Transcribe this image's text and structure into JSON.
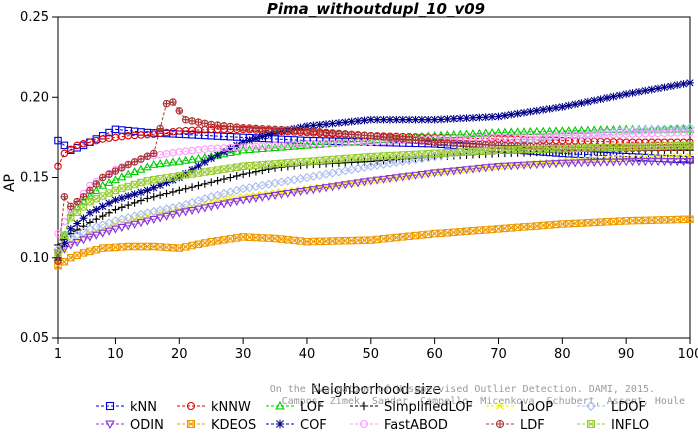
{
  "chart_data": {
    "type": "line",
    "title": "Pima_withoutdupl_10_v09",
    "xlabel": "Neighborhood size",
    "ylabel": "AP",
    "xlim": [
      1,
      100
    ],
    "ylim": [
      0.05,
      0.25
    ],
    "x_ticks": [
      1,
      10,
      20,
      30,
      40,
      50,
      60,
      70,
      80,
      90,
      100
    ],
    "y_ticks": [
      0.05,
      0.1,
      0.15,
      0.2,
      0.25
    ],
    "y_tick_labels": [
      "0.05",
      "0.10",
      "0.15",
      "0.20",
      "0.25"
    ],
    "grid": false,
    "legend_position": "bottom",
    "watermark": [
      "On the Evaluation of Unsupervised Outlier Detection. DAMI, 2015.",
      "Campos, Zimek, Sander, Campello, Micenkova, Schubert, Assent, Houle"
    ],
    "series": [
      {
        "name": "kNN",
        "color": "#0000dd",
        "marker": "square",
        "points": [
          [
            1,
            0.173
          ],
          [
            3,
            0.167
          ],
          [
            5,
            0.17
          ],
          [
            8,
            0.176
          ],
          [
            10,
            0.18
          ],
          [
            15,
            0.178
          ],
          [
            20,
            0.177
          ],
          [
            25,
            0.176
          ],
          [
            30,
            0.175
          ],
          [
            40,
            0.173
          ],
          [
            50,
            0.172
          ],
          [
            60,
            0.171
          ],
          [
            70,
            0.168
          ],
          [
            80,
            0.165
          ],
          [
            90,
            0.163
          ],
          [
            100,
            0.161
          ]
        ]
      },
      {
        "name": "kNNW",
        "color": "#dd0000",
        "marker": "circle",
        "points": [
          [
            1,
            0.157
          ],
          [
            2,
            0.165
          ],
          [
            4,
            0.17
          ],
          [
            8,
            0.174
          ],
          [
            12,
            0.176
          ],
          [
            16,
            0.177
          ],
          [
            20,
            0.179
          ],
          [
            25,
            0.18
          ],
          [
            30,
            0.18
          ],
          [
            40,
            0.178
          ],
          [
            50,
            0.176
          ],
          [
            60,
            0.175
          ],
          [
            70,
            0.174
          ],
          [
            80,
            0.173
          ],
          [
            90,
            0.172
          ],
          [
            100,
            0.172
          ]
        ]
      },
      {
        "name": "LOF",
        "color": "#00cc00",
        "marker": "triangle-up",
        "points": [
          [
            1,
            0.1
          ],
          [
            3,
            0.128
          ],
          [
            5,
            0.135
          ],
          [
            8,
            0.145
          ],
          [
            12,
            0.152
          ],
          [
            16,
            0.158
          ],
          [
            20,
            0.16
          ],
          [
            25,
            0.163
          ],
          [
            30,
            0.167
          ],
          [
            40,
            0.17
          ],
          [
            50,
            0.173
          ],
          [
            60,
            0.176
          ],
          [
            70,
            0.178
          ],
          [
            80,
            0.179
          ],
          [
            90,
            0.18
          ],
          [
            100,
            0.18
          ]
        ]
      },
      {
        "name": "SimplifiedLOF",
        "color": "#000000",
        "marker": "plus",
        "points": [
          [
            1,
            0.108
          ],
          [
            3,
            0.115
          ],
          [
            6,
            0.122
          ],
          [
            10,
            0.13
          ],
          [
            15,
            0.137
          ],
          [
            20,
            0.142
          ],
          [
            25,
            0.147
          ],
          [
            30,
            0.152
          ],
          [
            35,
            0.156
          ],
          [
            40,
            0.158
          ],
          [
            50,
            0.16
          ],
          [
            60,
            0.163
          ],
          [
            70,
            0.165
          ],
          [
            80,
            0.166
          ],
          [
            90,
            0.167
          ],
          [
            100,
            0.167
          ]
        ]
      },
      {
        "name": "LoOP",
        "color": "#eeee00",
        "marker": "x",
        "points": [
          [
            1,
            0.1
          ],
          [
            3,
            0.11
          ],
          [
            6,
            0.115
          ],
          [
            10,
            0.121
          ],
          [
            15,
            0.126
          ],
          [
            20,
            0.13
          ],
          [
            25,
            0.135
          ],
          [
            30,
            0.138
          ],
          [
            40,
            0.143
          ],
          [
            50,
            0.148
          ],
          [
            60,
            0.153
          ],
          [
            70,
            0.157
          ],
          [
            80,
            0.16
          ],
          [
            90,
            0.162
          ],
          [
            100,
            0.163
          ]
        ]
      },
      {
        "name": "LDOF",
        "color": "#aabbee",
        "marker": "diamond",
        "points": [
          [
            1,
            0.105
          ],
          [
            3,
            0.112
          ],
          [
            6,
            0.118
          ],
          [
            10,
            0.123
          ],
          [
            15,
            0.128
          ],
          [
            20,
            0.132
          ],
          [
            25,
            0.138
          ],
          [
            30,
            0.143
          ],
          [
            40,
            0.15
          ],
          [
            50,
            0.157
          ],
          [
            60,
            0.163
          ],
          [
            70,
            0.17
          ],
          [
            80,
            0.176
          ],
          [
            90,
            0.179
          ],
          [
            100,
            0.181
          ]
        ]
      },
      {
        "name": "ODIN",
        "color": "#8833dd",
        "marker": "triangle-down",
        "points": [
          [
            1,
            0.103
          ],
          [
            3,
            0.108
          ],
          [
            6,
            0.113
          ],
          [
            10,
            0.118
          ],
          [
            15,
            0.123
          ],
          [
            20,
            0.128
          ],
          [
            25,
            0.132
          ],
          [
            30,
            0.136
          ],
          [
            40,
            0.142
          ],
          [
            50,
            0.148
          ],
          [
            60,
            0.153
          ],
          [
            70,
            0.157
          ],
          [
            80,
            0.159
          ],
          [
            90,
            0.16
          ],
          [
            100,
            0.16
          ]
        ]
      },
      {
        "name": "KDEOS",
        "color": "#ee9900",
        "marker": "square-x",
        "points": [
          [
            1,
            0.095
          ],
          [
            3,
            0.1
          ],
          [
            5,
            0.103
          ],
          [
            8,
            0.106
          ],
          [
            12,
            0.107
          ],
          [
            16,
            0.107
          ],
          [
            20,
            0.106
          ],
          [
            25,
            0.11
          ],
          [
            30,
            0.113
          ],
          [
            35,
            0.112
          ],
          [
            40,
            0.11
          ],
          [
            50,
            0.111
          ],
          [
            60,
            0.115
          ],
          [
            70,
            0.118
          ],
          [
            80,
            0.121
          ],
          [
            90,
            0.123
          ],
          [
            100,
            0.124
          ]
        ]
      },
      {
        "name": "COF",
        "color": "#000088",
        "marker": "asterisk",
        "points": [
          [
            1,
            0.1
          ],
          [
            3,
            0.118
          ],
          [
            6,
            0.128
          ],
          [
            10,
            0.136
          ],
          [
            15,
            0.142
          ],
          [
            20,
            0.15
          ],
          [
            25,
            0.162
          ],
          [
            30,
            0.172
          ],
          [
            35,
            0.178
          ],
          [
            40,
            0.182
          ],
          [
            50,
            0.186
          ],
          [
            60,
            0.186
          ],
          [
            70,
            0.188
          ],
          [
            80,
            0.194
          ],
          [
            90,
            0.202
          ],
          [
            100,
            0.209
          ]
        ]
      },
      {
        "name": "FastABOD",
        "color": "#ff99ff",
        "marker": "circle",
        "points": [
          [
            1,
            0.115
          ],
          [
            3,
            0.13
          ],
          [
            6,
            0.145
          ],
          [
            10,
            0.155
          ],
          [
            15,
            0.163
          ],
          [
            20,
            0.166
          ],
          [
            25,
            0.168
          ],
          [
            30,
            0.169
          ],
          [
            40,
            0.171
          ],
          [
            50,
            0.172
          ],
          [
            60,
            0.174
          ],
          [
            70,
            0.175
          ],
          [
            80,
            0.176
          ],
          [
            90,
            0.177
          ],
          [
            100,
            0.178
          ]
        ]
      },
      {
        "name": "LDF",
        "color": "#aa3333",
        "marker": "circle-plus",
        "points": [
          [
            1,
            0.098
          ],
          [
            2,
            0.138
          ],
          [
            3,
            0.132
          ],
          [
            5,
            0.138
          ],
          [
            8,
            0.15
          ],
          [
            12,
            0.158
          ],
          [
            16,
            0.165
          ],
          [
            18,
            0.196
          ],
          [
            19,
            0.197
          ],
          [
            21,
            0.186
          ],
          [
            25,
            0.183
          ],
          [
            30,
            0.181
          ],
          [
            40,
            0.179
          ],
          [
            50,
            0.176
          ],
          [
            60,
            0.172
          ],
          [
            70,
            0.17
          ],
          [
            80,
            0.169
          ],
          [
            90,
            0.168
          ],
          [
            100,
            0.169
          ]
        ]
      },
      {
        "name": "INFLO",
        "color": "#99cc33",
        "marker": "square-x",
        "points": [
          [
            1,
            0.103
          ],
          [
            3,
            0.125
          ],
          [
            6,
            0.135
          ],
          [
            10,
            0.142
          ],
          [
            15,
            0.148
          ],
          [
            20,
            0.151
          ],
          [
            25,
            0.154
          ],
          [
            30,
            0.157
          ],
          [
            40,
            0.16
          ],
          [
            50,
            0.163
          ],
          [
            60,
            0.165
          ],
          [
            70,
            0.167
          ],
          [
            80,
            0.168
          ],
          [
            90,
            0.169
          ],
          [
            100,
            0.17
          ]
        ]
      }
    ]
  }
}
